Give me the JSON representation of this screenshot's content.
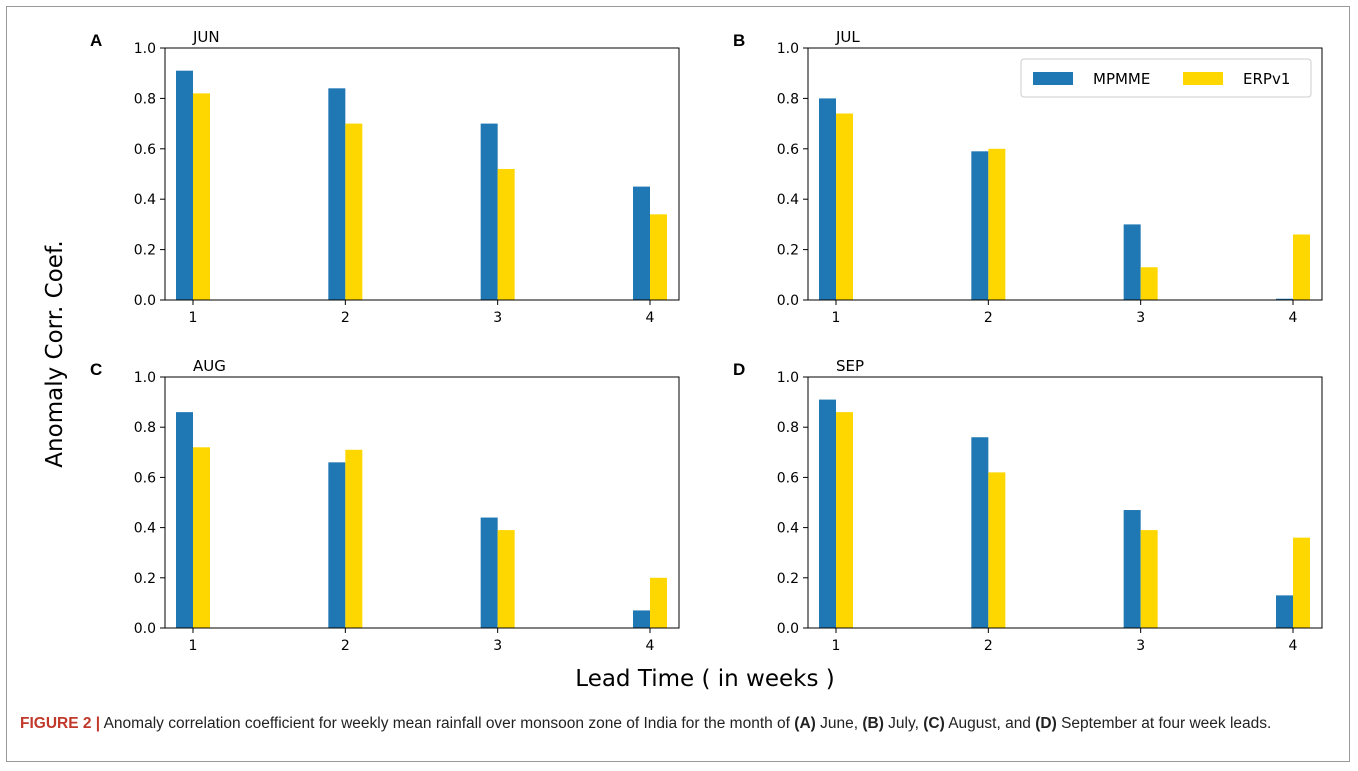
{
  "figure": {
    "ylabel": "Anomaly Corr. Coef.",
    "xlabel": "Lead Time ( in weeks )",
    "legend": [
      "MPMME",
      "ERPv1"
    ],
    "colors": {
      "MPMME": "#1f77b4",
      "ERPv1": "#ffd700"
    }
  },
  "caption": {
    "label": "FIGURE 2 |",
    "parts": [
      " Anomaly correlation coefficient for weekly mean rainfall over monsoon zone of India for the month of ",
      "(A)",
      " June, ",
      "(B)",
      " July, ",
      "(C)",
      " August, and ",
      "(D)",
      " September at four week leads."
    ]
  },
  "chart_data": [
    {
      "type": "bar",
      "panel": "A",
      "title": "JUN",
      "categories": [
        "1",
        "2",
        "3",
        "4"
      ],
      "series": [
        {
          "name": "MPMME",
          "values": [
            0.91,
            0.84,
            0.7,
            0.45
          ]
        },
        {
          "name": "ERPv1",
          "values": [
            0.82,
            0.7,
            0.52,
            0.34
          ]
        }
      ],
      "ylim": [
        0,
        1
      ],
      "yticks": [
        "0.0",
        "0.2",
        "0.4",
        "0.6",
        "0.8",
        "1.0"
      ],
      "legend": "none"
    },
    {
      "type": "bar",
      "panel": "B",
      "title": "JUL",
      "categories": [
        "1",
        "2",
        "3",
        "4"
      ],
      "series": [
        {
          "name": "MPMME",
          "values": [
            0.8,
            0.59,
            0.3,
            0.005
          ]
        },
        {
          "name": "ERPv1",
          "values": [
            0.74,
            0.6,
            0.13,
            0.26
          ]
        }
      ],
      "ylim": [
        0,
        1
      ],
      "yticks": [
        "0.0",
        "0.2",
        "0.4",
        "0.6",
        "0.8",
        "1.0"
      ],
      "legend": "top-right"
    },
    {
      "type": "bar",
      "panel": "C",
      "title": "AUG",
      "categories": [
        "1",
        "2",
        "3",
        "4"
      ],
      "series": [
        {
          "name": "MPMME",
          "values": [
            0.86,
            0.66,
            0.44,
            0.07
          ]
        },
        {
          "name": "ERPv1",
          "values": [
            0.72,
            0.71,
            0.39,
            0.2
          ]
        }
      ],
      "ylim": [
        0,
        1
      ],
      "yticks": [
        "0.0",
        "0.2",
        "0.4",
        "0.6",
        "0.8",
        "1.0"
      ],
      "legend": "none"
    },
    {
      "type": "bar",
      "panel": "D",
      "title": "SEP",
      "categories": [
        "1",
        "2",
        "3",
        "4"
      ],
      "series": [
        {
          "name": "MPMME",
          "values": [
            0.91,
            0.76,
            0.47,
            0.13
          ]
        },
        {
          "name": "ERPv1",
          "values": [
            0.86,
            0.62,
            0.39,
            0.36
          ]
        }
      ],
      "ylim": [
        0,
        1
      ],
      "yticks": [
        "0.0",
        "0.2",
        "0.4",
        "0.6",
        "0.8",
        "1.0"
      ],
      "legend": "none"
    }
  ]
}
